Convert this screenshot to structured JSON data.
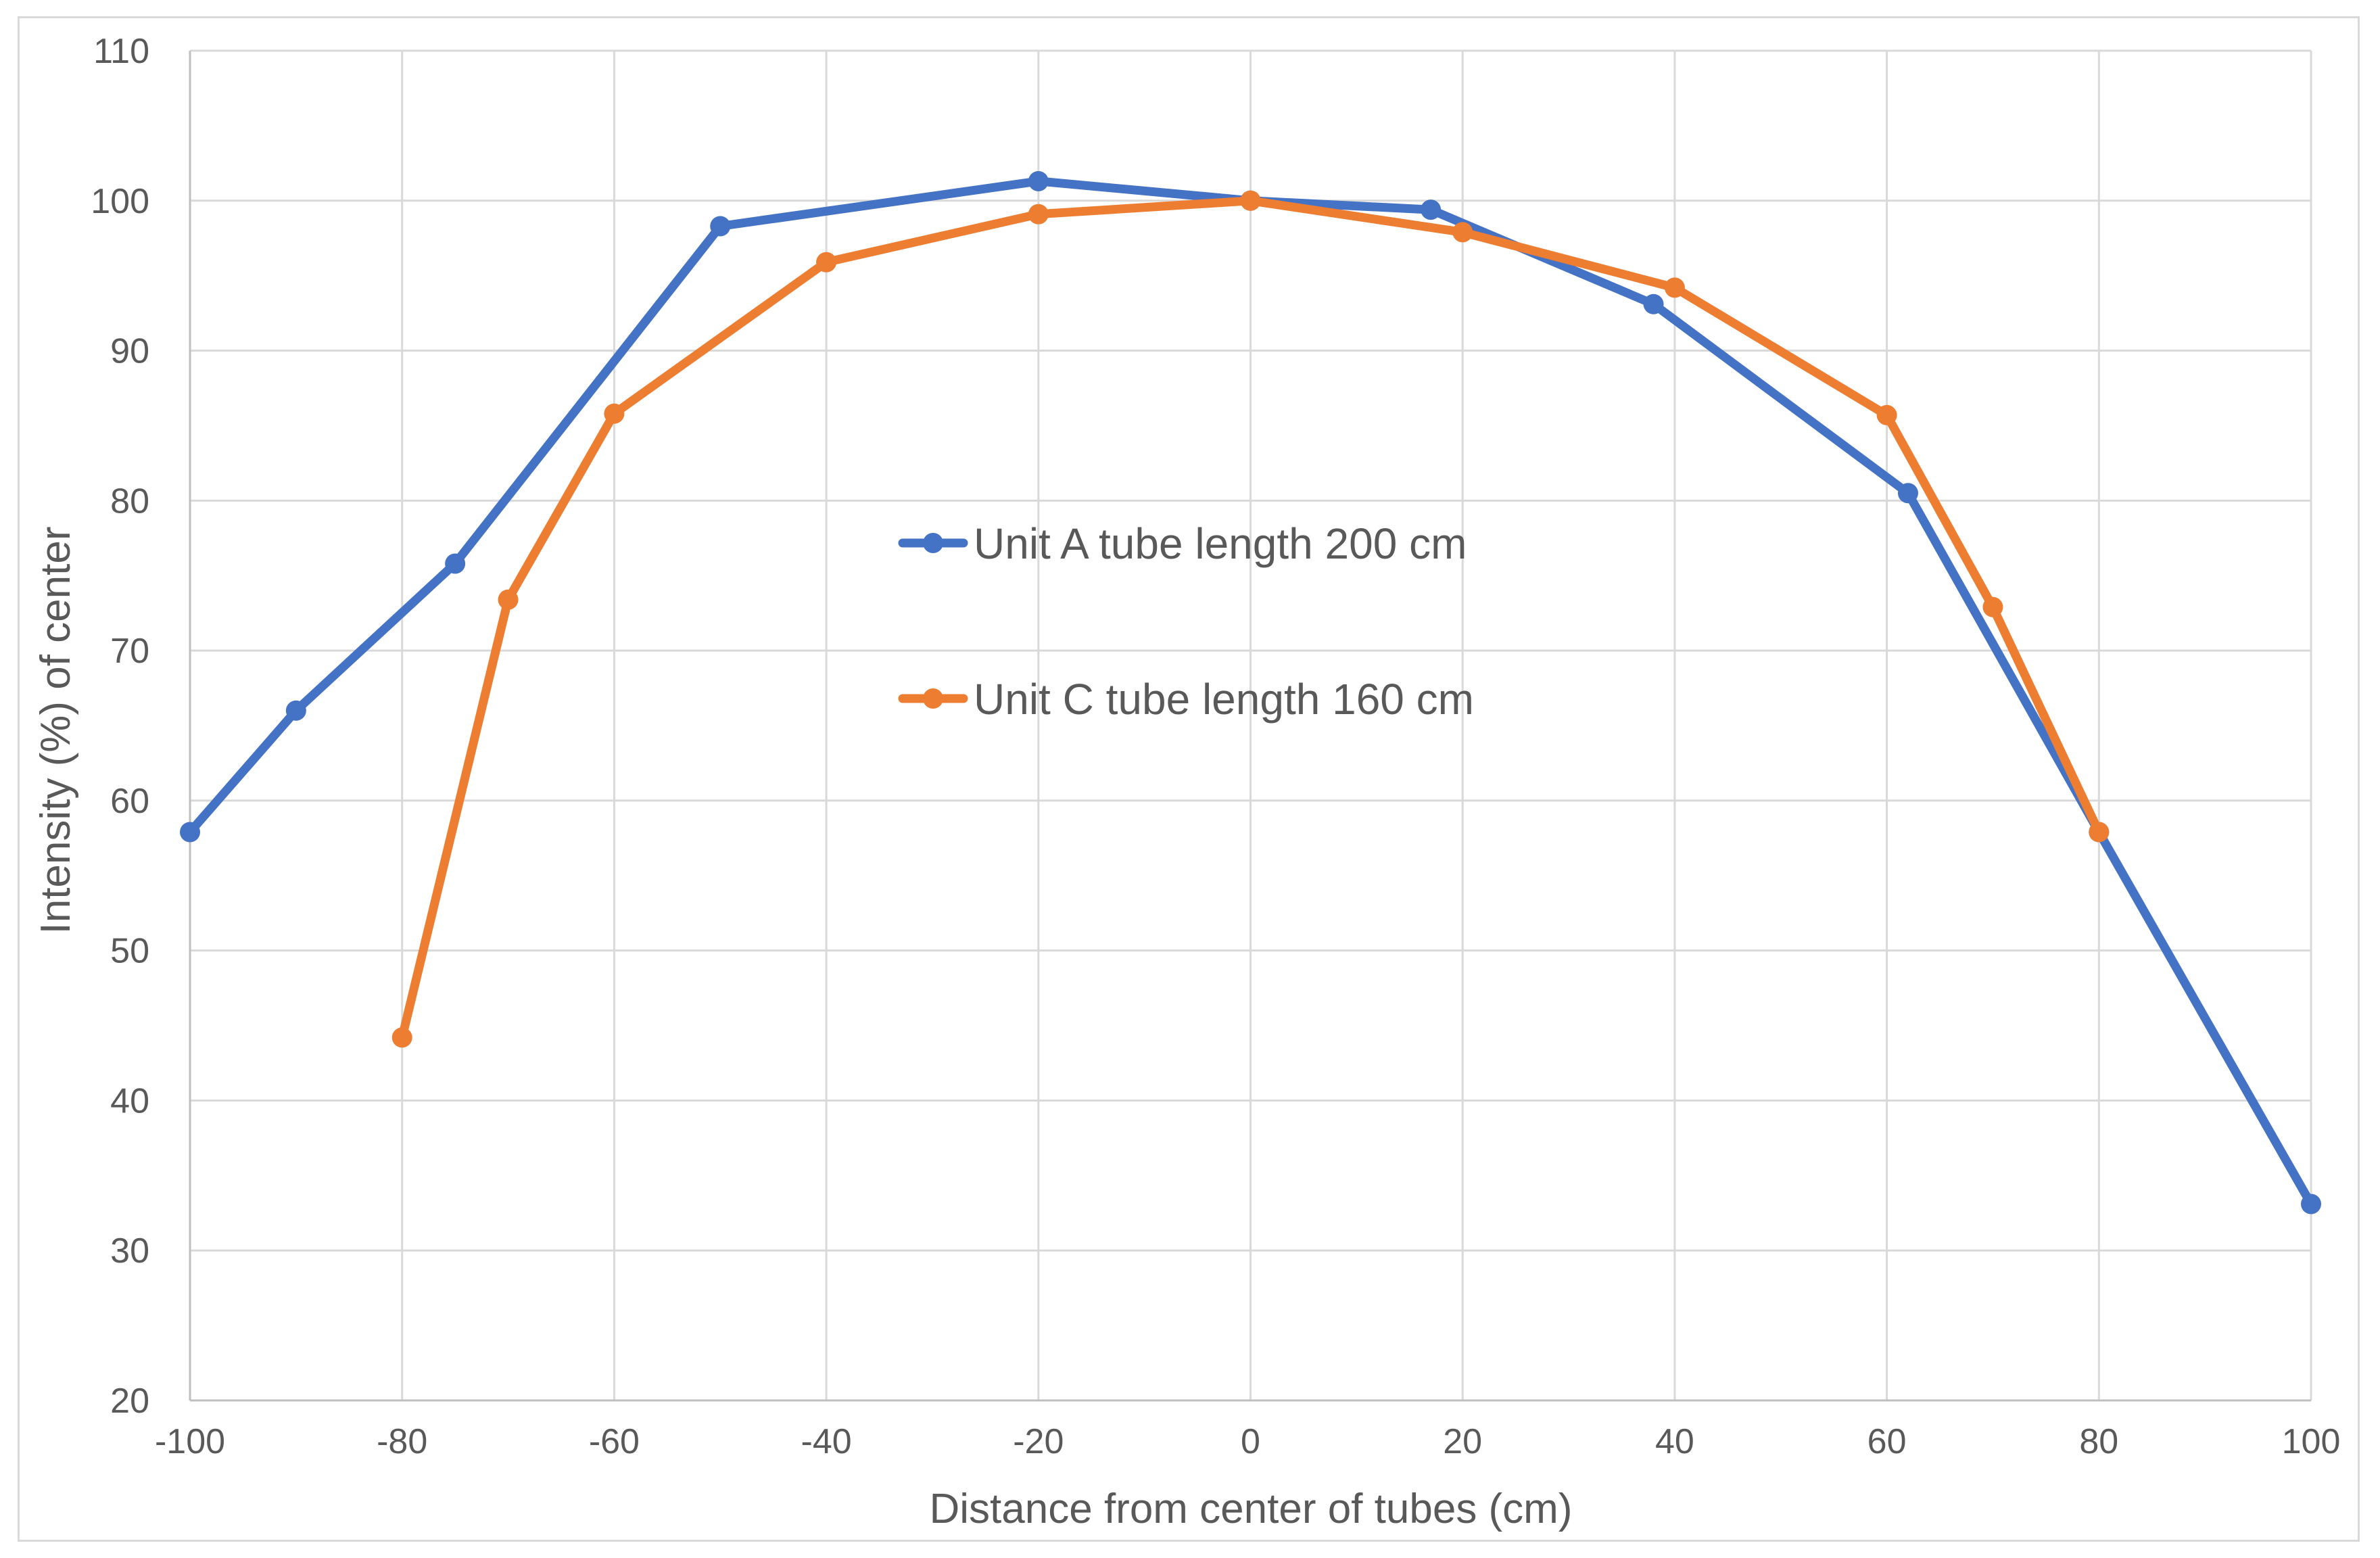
{
  "chart_data": {
    "type": "line",
    "xlabel": "Distance from center of tubes (cm)",
    "ylabel": "Intensity (%) of center",
    "xlim": [
      -100,
      100
    ],
    "ylim": [
      20,
      110
    ],
    "x_ticks": [
      -100,
      -80,
      -60,
      -40,
      -20,
      0,
      20,
      40,
      60,
      80,
      100
    ],
    "y_ticks": [
      20,
      30,
      40,
      50,
      60,
      70,
      80,
      90,
      100,
      110
    ],
    "grid": true,
    "legend_placement": "center",
    "series": [
      {
        "name": "Unit A tube length 200 cm",
        "color": "#4472c4",
        "points": [
          [
            -100,
            57.9
          ],
          [
            -90,
            66
          ],
          [
            -75,
            75.8
          ],
          [
            -50,
            98.3
          ],
          [
            -20,
            101.3
          ],
          [
            0,
            100
          ],
          [
            17,
            99.4
          ],
          [
            38,
            93.1
          ],
          [
            62,
            80.5
          ],
          [
            80,
            57.9
          ],
          [
            100,
            33.1
          ]
        ]
      },
      {
        "name": "Unit C tube length 160 cm",
        "color": "#ed7d31",
        "points": [
          [
            -80,
            44.2
          ],
          [
            -70,
            73.4
          ],
          [
            -60,
            85.8
          ],
          [
            -40,
            95.9
          ],
          [
            -20,
            99.1
          ],
          [
            0,
            100
          ],
          [
            20,
            97.9
          ],
          [
            40,
            94.2
          ],
          [
            60,
            85.7
          ],
          [
            70,
            72.9
          ],
          [
            80,
            57.9
          ]
        ]
      }
    ]
  }
}
